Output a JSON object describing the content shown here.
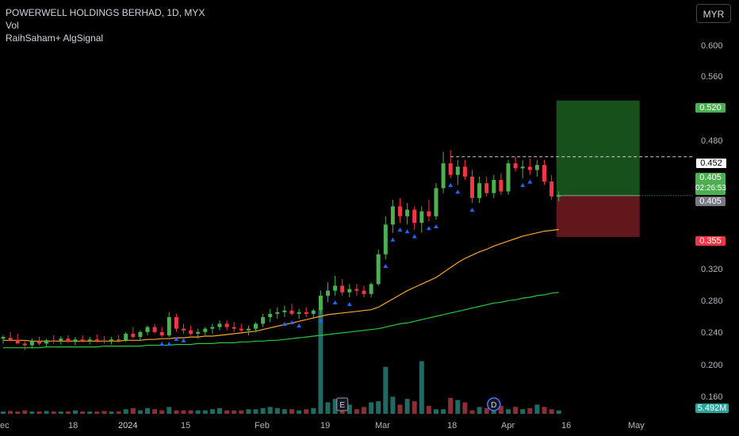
{
  "legend": {
    "title": "POWERWELL HOLDINGS BERHAD, 1D, MYX",
    "indicator1": "Vol",
    "indicator2": "RaihSaham+ AlgSignal"
  },
  "currency": "MYR",
  "markers": {
    "earnings": "E",
    "dividend": "D"
  },
  "tags": {
    "tp": "0.520",
    "resistance": "0.452",
    "last": "0.405",
    "countdown": "02:26:53",
    "entry": "0.405",
    "sl": "0.355",
    "volume": "5.492M"
  },
  "colors": {
    "up": "#4caf50",
    "down": "#f23645",
    "sma_fast": "#f7a72a",
    "sma_slow": "#26c940",
    "signal": "#2962ff",
    "tp_zone": "#1b5e20",
    "sl_zone": "#6b1a1f"
  },
  "chart_data": {
    "type": "candlestick",
    "y_ticks": [
      "0.600",
      "0.560",
      "0.480",
      "0.320",
      "0.280",
      "0.240",
      "0.200",
      "0.160"
    ],
    "x_ticks": [
      "ec",
      "18",
      "2024",
      "15",
      "Feb",
      "19",
      "Mar",
      "18",
      "Apr",
      "16",
      "May"
    ],
    "ylim": [
      0.143,
      0.632
    ],
    "levels": {
      "take_profit": 0.52,
      "resistance": 0.452,
      "entry": 0.405,
      "stop_loss": 0.355
    },
    "candles": [
      [
        0.232,
        0.236,
        0.226,
        0.234
      ],
      [
        0.233,
        0.24,
        0.229,
        0.23
      ],
      [
        0.23,
        0.238,
        0.226,
        0.226
      ],
      [
        0.226,
        0.23,
        0.218,
        0.224
      ],
      [
        0.224,
        0.232,
        0.22,
        0.229
      ],
      [
        0.229,
        0.234,
        0.224,
        0.226
      ],
      [
        0.226,
        0.232,
        0.222,
        0.23
      ],
      [
        0.23,
        0.236,
        0.226,
        0.229
      ],
      [
        0.229,
        0.235,
        0.225,
        0.232
      ],
      [
        0.232,
        0.236,
        0.227,
        0.228
      ],
      [
        0.228,
        0.234,
        0.224,
        0.231
      ],
      [
        0.231,
        0.236,
        0.227,
        0.229
      ],
      [
        0.229,
        0.234,
        0.225,
        0.231
      ],
      [
        0.231,
        0.237,
        0.227,
        0.23
      ],
      [
        0.23,
        0.235,
        0.226,
        0.229
      ],
      [
        0.229,
        0.234,
        0.225,
        0.231
      ],
      [
        0.231,
        0.236,
        0.227,
        0.23
      ],
      [
        0.23,
        0.24,
        0.228,
        0.238
      ],
      [
        0.238,
        0.246,
        0.232,
        0.234
      ],
      [
        0.234,
        0.242,
        0.23,
        0.24
      ],
      [
        0.24,
        0.248,
        0.236,
        0.246
      ],
      [
        0.246,
        0.25,
        0.238,
        0.24
      ],
      [
        0.24,
        0.246,
        0.234,
        0.236
      ],
      [
        0.236,
        0.264,
        0.234,
        0.258
      ],
      [
        0.258,
        0.262,
        0.24,
        0.244
      ],
      [
        0.244,
        0.25,
        0.238,
        0.242
      ],
      [
        0.242,
        0.248,
        0.236,
        0.238
      ],
      [
        0.238,
        0.244,
        0.232,
        0.24
      ],
      [
        0.24,
        0.246,
        0.236,
        0.244
      ],
      [
        0.244,
        0.25,
        0.238,
        0.246
      ],
      [
        0.246,
        0.254,
        0.242,
        0.25
      ],
      [
        0.25,
        0.254,
        0.242,
        0.246
      ],
      [
        0.246,
        0.252,
        0.24,
        0.244
      ],
      [
        0.244,
        0.25,
        0.238,
        0.242
      ],
      [
        0.242,
        0.248,
        0.236,
        0.244
      ],
      [
        0.244,
        0.252,
        0.24,
        0.25
      ],
      [
        0.25,
        0.262,
        0.246,
        0.258
      ],
      [
        0.258,
        0.268,
        0.252,
        0.262
      ],
      [
        0.262,
        0.27,
        0.256,
        0.264
      ],
      [
        0.264,
        0.272,
        0.258,
        0.266
      ],
      [
        0.266,
        0.274,
        0.26,
        0.262
      ],
      [
        0.262,
        0.268,
        0.256,
        0.264
      ],
      [
        0.264,
        0.27,
        0.258,
        0.262
      ],
      [
        0.262,
        0.268,
        0.256,
        0.266
      ],
      [
        0.266,
        0.29,
        0.262,
        0.284
      ],
      [
        0.284,
        0.3,
        0.276,
        0.29
      ],
      [
        0.29,
        0.308,
        0.284,
        0.296
      ],
      [
        0.296,
        0.304,
        0.284,
        0.288
      ],
      [
        0.288,
        0.298,
        0.282,
        0.292
      ],
      [
        0.292,
        0.298,
        0.284,
        0.29
      ],
      [
        0.29,
        0.296,
        0.282,
        0.286
      ],
      [
        0.286,
        0.3,
        0.282,
        0.298
      ],
      [
        0.298,
        0.34,
        0.296,
        0.334
      ],
      [
        0.334,
        0.38,
        0.328,
        0.37
      ],
      [
        0.37,
        0.4,
        0.36,
        0.392
      ],
      [
        0.392,
        0.402,
        0.372,
        0.38
      ],
      [
        0.38,
        0.396,
        0.37,
        0.388
      ],
      [
        0.388,
        0.392,
        0.364,
        0.372
      ],
      [
        0.372,
        0.392,
        0.36,
        0.386
      ],
      [
        0.386,
        0.4,
        0.374,
        0.38
      ],
      [
        0.38,
        0.42,
        0.376,
        0.414
      ],
      [
        0.414,
        0.458,
        0.408,
        0.444
      ],
      [
        0.444,
        0.46,
        0.426,
        0.43
      ],
      [
        0.43,
        0.448,
        0.418,
        0.44
      ],
      [
        0.44,
        0.448,
        0.424,
        0.428
      ],
      [
        0.428,
        0.436,
        0.396,
        0.402
      ],
      [
        0.402,
        0.428,
        0.396,
        0.42
      ],
      [
        0.42,
        0.428,
        0.404,
        0.408
      ],
      [
        0.408,
        0.43,
        0.402,
        0.424
      ],
      [
        0.424,
        0.432,
        0.406,
        0.41
      ],
      [
        0.41,
        0.448,
        0.406,
        0.444
      ],
      [
        0.444,
        0.452,
        0.434,
        0.438
      ],
      [
        0.438,
        0.448,
        0.426,
        0.44
      ],
      [
        0.44,
        0.45,
        0.43,
        0.436
      ],
      [
        0.436,
        0.448,
        0.428,
        0.442
      ],
      [
        0.442,
        0.448,
        0.418,
        0.422
      ],
      [
        0.422,
        0.43,
        0.4,
        0.404
      ],
      [
        0.404,
        0.41,
        0.398,
        0.405
      ]
    ],
    "volume": [
      0.2,
      0.25,
      0.2,
      0.3,
      0.2,
      0.2,
      0.25,
      0.2,
      0.2,
      0.2,
      0.3,
      0.2,
      0.2,
      0.2,
      0.25,
      0.2,
      0.2,
      0.4,
      0.5,
      0.3,
      0.5,
      0.4,
      0.3,
      0.6,
      0.3,
      0.3,
      0.3,
      0.3,
      0.3,
      0.4,
      0.5,
      0.3,
      0.3,
      0.3,
      0.4,
      0.4,
      0.5,
      0.6,
      0.5,
      0.4,
      0.4,
      0.3,
      0.4,
      0.5,
      9.0,
      1.0,
      1.3,
      0.9,
      0.8,
      0.4,
      0.6,
      1.0,
      1.1,
      4.1,
      1.5,
      0.8,
      1.3,
      1.1,
      4.6,
      0.7,
      0.4,
      0.4,
      1.4,
      1.2,
      1.0,
      0.3,
      0.6,
      0.5,
      0.8,
      0.7,
      0.4,
      0.6,
      0.4,
      0.5,
      0.8,
      0.6,
      0.4,
      0.3
    ],
    "sma_fast": [
      0.23,
      0.23,
      0.23,
      0.23,
      0.229,
      0.229,
      0.229,
      0.229,
      0.229,
      0.229,
      0.229,
      0.229,
      0.229,
      0.229,
      0.229,
      0.229,
      0.229,
      0.23,
      0.23,
      0.23,
      0.231,
      0.231,
      0.232,
      0.232,
      0.233,
      0.233,
      0.234,
      0.234,
      0.235,
      0.235,
      0.236,
      0.237,
      0.238,
      0.239,
      0.24,
      0.241,
      0.243,
      0.245,
      0.247,
      0.249,
      0.251,
      0.253,
      0.255,
      0.257,
      0.259,
      0.261,
      0.262,
      0.263,
      0.264,
      0.265,
      0.266,
      0.267,
      0.27,
      0.275,
      0.28,
      0.285,
      0.29,
      0.294,
      0.298,
      0.302,
      0.306,
      0.312,
      0.318,
      0.324,
      0.329,
      0.333,
      0.337,
      0.34,
      0.344,
      0.347,
      0.35,
      0.353,
      0.356,
      0.358,
      0.36,
      0.362,
      0.363,
      0.364
    ],
    "sma_slow": [
      0.221,
      0.221,
      0.221,
      0.221,
      0.221,
      0.221,
      0.222,
      0.222,
      0.222,
      0.222,
      0.222,
      0.222,
      0.222,
      0.222,
      0.223,
      0.223,
      0.223,
      0.223,
      0.223,
      0.223,
      0.224,
      0.224,
      0.224,
      0.224,
      0.225,
      0.225,
      0.225,
      0.226,
      0.226,
      0.226,
      0.227,
      0.227,
      0.227,
      0.228,
      0.228,
      0.229,
      0.229,
      0.23,
      0.23,
      0.231,
      0.232,
      0.233,
      0.234,
      0.235,
      0.236,
      0.237,
      0.238,
      0.239,
      0.24,
      0.241,
      0.242,
      0.243,
      0.244,
      0.246,
      0.248,
      0.25,
      0.251,
      0.253,
      0.255,
      0.257,
      0.259,
      0.261,
      0.263,
      0.265,
      0.267,
      0.269,
      0.271,
      0.273,
      0.275,
      0.276,
      0.278,
      0.279,
      0.281,
      0.282,
      0.284,
      0.285,
      0.287,
      0.288
    ]
  }
}
